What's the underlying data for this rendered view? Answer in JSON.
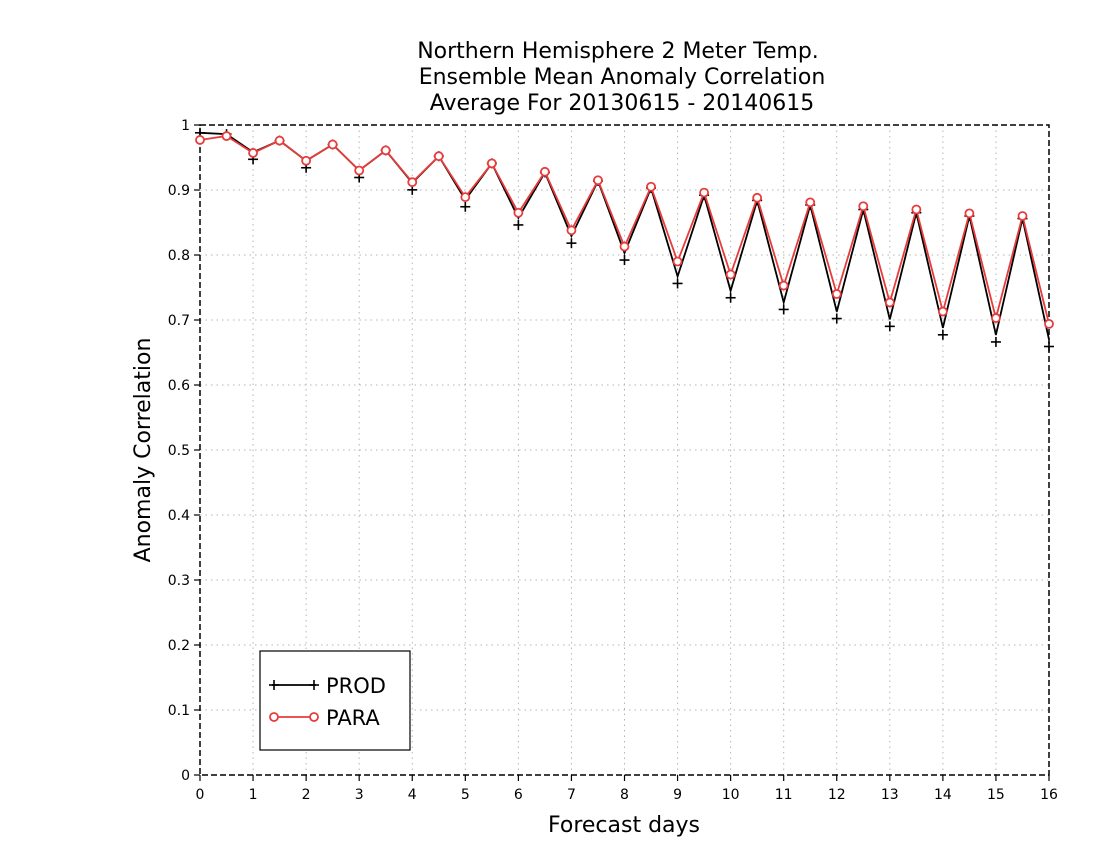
{
  "chart_data": {
    "type": "line",
    "title": [
      "Northern Hemisphere 2 Meter Temp.",
      "Ensemble Mean Anomaly Correlation",
      "Average For 20130615 - 20140615"
    ],
    "xlabel": "Forecast days",
    "ylabel": "Anomaly Correlation",
    "xlim": [
      0,
      16
    ],
    "ylim": [
      0,
      1
    ],
    "x_ticks": [
      "0",
      "1",
      "2",
      "3",
      "4",
      "5",
      "6",
      "7",
      "8",
      "9",
      "10",
      "11",
      "12",
      "13",
      "14",
      "15",
      "16"
    ],
    "y_ticks": [
      "0",
      "0.1",
      "0.2",
      "0.3",
      "0.4",
      "0.5",
      "0.6",
      "0.7",
      "0.8",
      "0.9",
      "1"
    ],
    "grid": true,
    "legend_position": "bottom-left",
    "x": [
      0,
      0.5,
      1,
      1.5,
      2,
      2.5,
      3,
      3.5,
      4,
      4.5,
      5,
      5.5,
      6,
      6.5,
      7,
      7.5,
      8,
      8.5,
      9,
      9.5,
      10,
      10.5,
      11,
      11.5,
      12,
      12.5,
      13,
      13.5,
      14,
      14.5,
      15,
      15.5,
      16
    ],
    "series": [
      {
        "name": "PROD",
        "color": "#000000",
        "marker": "plus",
        "values": [
          0.988,
          0.986,
          0.958,
          0.976,
          0.945,
          0.97,
          0.93,
          0.961,
          0.911,
          0.952,
          0.885,
          0.941,
          0.857,
          0.927,
          0.829,
          0.914,
          0.803,
          0.903,
          0.767,
          0.892,
          0.745,
          0.884,
          0.727,
          0.877,
          0.713,
          0.87,
          0.701,
          0.865,
          0.688,
          0.86,
          0.677,
          0.856,
          0.67
        ]
      },
      {
        "name": "PARA",
        "color": "#e83c3c",
        "marker": "circle",
        "values": [
          0.977,
          0.983,
          0.957,
          0.976,
          0.945,
          0.97,
          0.93,
          0.961,
          0.912,
          0.952,
          0.889,
          0.941,
          0.865,
          0.928,
          0.838,
          0.915,
          0.813,
          0.905,
          0.79,
          0.896,
          0.77,
          0.888,
          0.753,
          0.881,
          0.74,
          0.875,
          0.727,
          0.87,
          0.713,
          0.864,
          0.703,
          0.86,
          0.694
        ]
      }
    ]
  }
}
